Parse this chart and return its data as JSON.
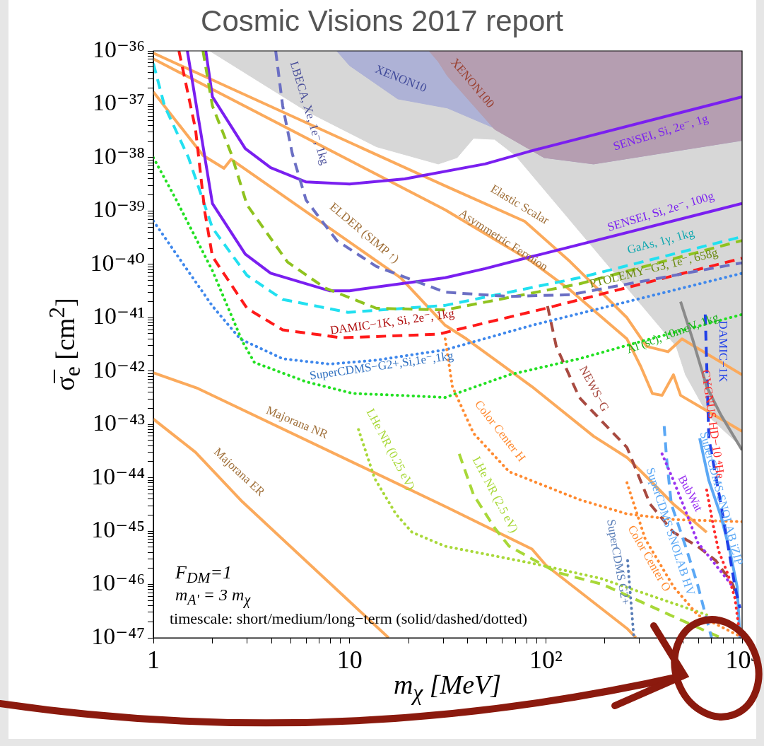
{
  "chart_data": {
    "type": "line",
    "title": "Cosmic Visions 2017 report",
    "xlabel": "m$_{χ}$ [MeV]",
    "ylabel": "σ̅$_{e}$ [cm$^{2}$]",
    "log": "xy",
    "grid": false,
    "legend": false,
    "xlim": [
      1,
      1000
    ],
    "ylim": [
      1e-47,
      1e-36
    ],
    "xticks": [
      {
        "value": 1,
        "label": "1"
      },
      {
        "value": 2,
        "label": null
      },
      {
        "value": 3,
        "label": null
      },
      {
        "value": 4,
        "label": null
      },
      {
        "value": 5,
        "label": null
      },
      {
        "value": 6,
        "label": null
      },
      {
        "value": 7,
        "label": null
      },
      {
        "value": 8,
        "label": null
      },
      {
        "value": 9,
        "label": null
      },
      {
        "value": 10,
        "label": "10"
      },
      {
        "value": 20,
        "label": null
      },
      {
        "value": 30,
        "label": null
      },
      {
        "value": 40,
        "label": null
      },
      {
        "value": 50,
        "label": null
      },
      {
        "value": 60,
        "label": null
      },
      {
        "value": 70,
        "label": null
      },
      {
        "value": 80,
        "label": null
      },
      {
        "value": 90,
        "label": null
      },
      {
        "value": 100,
        "label": "10²"
      },
      {
        "value": 200,
        "label": null
      },
      {
        "value": 300,
        "label": null
      },
      {
        "value": 400,
        "label": null
      },
      {
        "value": 500,
        "label": null
      },
      {
        "value": 600,
        "label": null
      },
      {
        "value": 700,
        "label": null
      },
      {
        "value": 800,
        "label": null
      },
      {
        "value": 900,
        "label": null
      },
      {
        "value": 1000,
        "label": "10³"
      }
    ],
    "yticks": [
      {
        "value": 1e-47,
        "label": "10⁻⁴⁷"
      },
      {
        "value": 2e-47,
        "label": null
      },
      {
        "value": 3e-47,
        "label": null
      },
      {
        "value": 4e-47,
        "label": null
      },
      {
        "value": 5e-47,
        "label": null
      },
      {
        "value": 6e-47,
        "label": null
      },
      {
        "value": 7e-47,
        "label": null
      },
      {
        "value": 8e-47,
        "label": null
      },
      {
        "value": 9e-47,
        "label": null
      },
      {
        "value": 1e-46,
        "label": "10⁻⁴⁶"
      },
      {
        "value": 2e-46,
        "label": null
      },
      {
        "value": 3e-46,
        "label": null
      },
      {
        "value": 4e-46,
        "label": null
      },
      {
        "value": 5e-46,
        "label": null
      },
      {
        "value": 6e-46,
        "label": null
      },
      {
        "value": 7e-46,
        "label": null
      },
      {
        "value": 8e-46,
        "label": null
      },
      {
        "value": 9e-46,
        "label": null
      },
      {
        "value": 1e-45,
        "label": "10⁻⁴⁵"
      },
      {
        "value": 2e-45,
        "label": null
      },
      {
        "value": 3e-45,
        "label": null
      },
      {
        "value": 4e-45,
        "label": null
      },
      {
        "value": 5e-45,
        "label": null
      },
      {
        "value": 6e-45,
        "label": null
      },
      {
        "value": 7e-45,
        "label": null
      },
      {
        "value": 8e-45,
        "label": null
      },
      {
        "value": 9e-45,
        "label": null
      },
      {
        "value": 1e-44,
        "label": "10⁻⁴⁴"
      },
      {
        "value": 2e-44,
        "label": null
      },
      {
        "value": 3e-44,
        "label": null
      },
      {
        "value": 4e-44,
        "label": null
      },
      {
        "value": 5e-44,
        "label": null
      },
      {
        "value": 6e-44,
        "label": null
      },
      {
        "value": 7e-44,
        "label": null
      },
      {
        "value": 8e-44,
        "label": null
      },
      {
        "value": 9e-44,
        "label": null
      },
      {
        "value": 1e-43,
        "label": "10⁻⁴³"
      },
      {
        "value": 2e-43,
        "label": null
      },
      {
        "value": 3e-43,
        "label": null
      },
      {
        "value": 4e-43,
        "label": null
      },
      {
        "value": 5e-43,
        "label": null
      },
      {
        "value": 6e-43,
        "label": null
      },
      {
        "value": 7e-43,
        "label": null
      },
      {
        "value": 8e-43,
        "label": null
      },
      {
        "value": 9e-43,
        "label": null
      },
      {
        "value": 1e-42,
        "label": "10⁻⁴²"
      },
      {
        "value": 2e-42,
        "label": null
      },
      {
        "value": 3e-42,
        "label": null
      },
      {
        "value": 4e-42,
        "label": null
      },
      {
        "value": 5e-42,
        "label": null
      },
      {
        "value": 6e-42,
        "label": null
      },
      {
        "value": 7e-42,
        "label": null
      },
      {
        "value": 8e-42,
        "label": null
      },
      {
        "value": 9e-42,
        "label": null
      },
      {
        "value": 1e-41,
        "label": "10⁻⁴¹"
      },
      {
        "value": 2e-41,
        "label": null
      },
      {
        "value": 3e-41,
        "label": null
      },
      {
        "value": 4e-41,
        "label": null
      },
      {
        "value": 5e-41,
        "label": null
      },
      {
        "value": 6e-41,
        "label": null
      },
      {
        "value": 7e-41,
        "label": null
      },
      {
        "value": 8e-41,
        "label": null
      },
      {
        "value": 9e-41,
        "label": null
      },
      {
        "value": 1e-40,
        "label": "10⁻⁴⁰"
      },
      {
        "value": 2e-40,
        "label": null
      },
      {
        "value": 3e-40,
        "label": null
      },
      {
        "value": 4e-40,
        "label": null
      },
      {
        "value": 5e-40,
        "label": null
      },
      {
        "value": 6e-40,
        "label": null
      },
      {
        "value": 7e-40,
        "label": null
      },
      {
        "value": 8e-40,
        "label": null
      },
      {
        "value": 9e-40,
        "label": null
      },
      {
        "value": 1e-39,
        "label": "10⁻³⁹"
      },
      {
        "value": 2e-39,
        "label": null
      },
      {
        "value": 3e-39,
        "label": null
      },
      {
        "value": 4e-39,
        "label": null
      },
      {
        "value": 5e-39,
        "label": null
      },
      {
        "value": 6e-39,
        "label": null
      },
      {
        "value": 7e-39,
        "label": null
      },
      {
        "value": 8e-39,
        "label": null
      },
      {
        "value": 9e-39,
        "label": null
      },
      {
        "value": 1e-38,
        "label": "10⁻³⁸"
      },
      {
        "value": 2e-38,
        "label": null
      },
      {
        "value": 3e-38,
        "label": null
      },
      {
        "value": 4e-38,
        "label": null
      },
      {
        "value": 5e-38,
        "label": null
      },
      {
        "value": 6e-38,
        "label": null
      },
      {
        "value": 7e-38,
        "label": null
      },
      {
        "value": 8e-38,
        "label": null
      },
      {
        "value": 9e-38,
        "label": null
      },
      {
        "value": 1e-37,
        "label": "10⁻³⁷"
      },
      {
        "value": 2e-37,
        "label": null
      },
      {
        "value": 3e-37,
        "label": null
      },
      {
        "value": 4e-37,
        "label": null
      },
      {
        "value": 5e-37,
        "label": null
      },
      {
        "value": 6e-37,
        "label": null
      },
      {
        "value": 7e-37,
        "label": null
      },
      {
        "value": 8e-37,
        "label": null
      },
      {
        "value": 9e-37,
        "label": null
      },
      {
        "value": 1e-36,
        "label": "10⁻³⁶"
      }
    ],
    "series": [
      {
        "type": "area",
        "color": "#d7d7d7",
        "x": [
          1.94,
          6,
          13.7,
          28.3,
          35.3,
          42.8,
          54.8,
          70,
          462,
          515,
          677,
          1000,
          1000
        ],
        "values": [
          1e-36,
          7.5e-38,
          1.6e-38,
          7.6e-39,
          1e-38,
          2.3e-38,
          2.2e-38,
          1.1e-38,
          2.9e-42,
          8.5e-43,
          1.4e-43,
          3.7e-44,
          1e-36
        ]
      },
      {
        "name": "XENON10",
        "type": "area",
        "color": "#aeb2d6",
        "x": [
          8.6,
          10,
          17.6,
          31.5,
          53.5,
          98,
          175,
          1000,
          1000
        ],
        "values": [
          1e-36,
          5.3e-37,
          1.26e-37,
          8.5e-38,
          3.7e-38,
          1e-38,
          7.6e-39,
          2.1e-38,
          1e-36
        ]
      },
      {
        "name": "XENON100",
        "type": "area",
        "color": "#b59eb1",
        "x": [
          25.4,
          28.3,
          31.5,
          54.8,
          98,
          175,
          1000,
          1000
        ],
        "values": [
          1e-36,
          6.3e-37,
          3.4e-37,
          3.4e-38,
          1e-38,
          7.6e-39,
          2.1e-38,
          1e-36
        ]
      },
      {
        "name": "Elastic Scalar",
        "type": "line",
        "color": "#fbaa5c",
        "line_style": "solid",
        "x": [
          1,
          30.7,
          78,
          133,
          259,
          326,
          419,
          494,
          1000
        ],
        "values": [
          9.1e-37,
          2.95e-39,
          6.4e-40,
          1.12e-40,
          1e-41,
          2.9e-42,
          2.3e-42,
          4e-42,
          8.5e-43
        ]
      },
      {
        "name": "Asymmetric Fermion",
        "type": "line",
        "color": "#fbaa5c",
        "line_style": "solid",
        "x": [
          1,
          30.7,
          85,
          133,
          259,
          305,
          349,
          391,
          447,
          486,
          1000
        ],
        "values": [
          7.1e-37,
          1.05e-39,
          1.12e-40,
          3.3e-41,
          4e-42,
          1.2e-42,
          3.8e-43,
          3.5e-43,
          8.5e-43,
          3.5e-43,
          7.4e-44
        ]
      },
      {
        "name": "ELDER (SIMP ↑)",
        "type": "line",
        "color": "#fbaa5c",
        "line_style": "solid",
        "x": [
          1,
          1.79,
          2.29,
          2.49,
          18.2,
          30.7,
          39.4,
          85,
          175,
          259,
          340,
          447,
          660
        ],
        "values": [
          1.7e-37,
          1.1e-38,
          6.3e-39,
          9.3e-39,
          5.6e-41,
          7.2e-42,
          4e-42,
          5.1e-43,
          6e-44,
          2.4e-44,
          8.9e-45,
          3.2e-45,
          9.5e-46
        ]
      },
      {
        "name": "Majorana NR",
        "type": "line",
        "color": "#fbaa5c",
        "line_style": "solid",
        "x": [
          1,
          1.69,
          30.7,
          85,
          100,
          259,
          288
        ],
        "values": [
          9.3e-43,
          4.7e-43,
          2.9e-45,
          4.6e-46,
          2.3e-46,
          1.5e-47,
          1e-47
        ]
      },
      {
        "name": "Majorana ER",
        "type": "line",
        "color": "#fbaa5c",
        "line_style": "solid",
        "x": [
          1,
          1.64,
          2.84,
          15.8
        ],
        "values": [
          1.26e-43,
          3e-44,
          3.55e-45,
          1e-47
        ]
      },
      {
        "name": "SENSEI, Si, 2e⁻, 1g",
        "type": "line",
        "color": "#7a1ff0",
        "line_style": "solid",
        "x": [
          1.85,
          2,
          2.94,
          3.96,
          6,
          10,
          19.1,
          49,
          85,
          1000
        ],
        "values": [
          1e-36,
          1.38e-37,
          1.48e-38,
          6.5e-39,
          3.5e-39,
          3.2e-39,
          4e-39,
          7.6e-39,
          1.35e-38,
          1.38e-37
        ]
      },
      {
        "name": "SENSEI, Si, 2e⁻, 100g",
        "type": "line",
        "color": "#7a1ff0",
        "line_style": "solid",
        "x": [
          1.49,
          2,
          2.94,
          3.96,
          7.9,
          10,
          30.7,
          49,
          85,
          1000
        ],
        "values": [
          1e-36,
          1.38e-39,
          1.55e-40,
          6.8e-41,
          3.2e-41,
          3.2e-41,
          5.6e-41,
          8.3e-41,
          1.4e-40,
          1.38e-39
        ]
      },
      {
        "name": "GaAs, 1γ, 1kg",
        "type": "line",
        "color": "#22e0f0",
        "line_style": "dashed",
        "x": [
          1,
          1.14,
          1.51,
          2,
          3,
          4.56,
          9.8,
          30.7,
          148,
          1000
        ],
        "values": [
          5.8e-37,
          9.3e-38,
          1e-38,
          4.8e-40,
          6.2e-41,
          2.2e-41,
          1.26e-41,
          1.7e-41,
          5.6e-41,
          3.3e-40
        ]
      },
      {
        "name": "PTOLEMY−G3, 1e⁻, 658g",
        "type": "line",
        "color": "#8fc31f",
        "line_style": "dashed",
        "x": [
          1.79,
          2,
          2.49,
          3,
          4.83,
          7.5,
          13.7,
          30.7,
          148,
          1000
        ],
        "values": [
          1e-36,
          9.3e-38,
          1.2e-38,
          1.3e-39,
          1.1e-40,
          3.6e-41,
          1.5e-41,
          1.4e-41,
          4.3e-41,
          2.8e-40
        ]
      },
      {
        "name": "DAMIC−1K, Si, 2e⁻, 1kg",
        "type": "line",
        "color": "#ff1a1a",
        "line_style": "dashed",
        "x": [
          1.35,
          1.64,
          1.83,
          2,
          3,
          4.56,
          9.1,
          28.3,
          100,
          1000
        ],
        "values": [
          1e-36,
          3.4e-38,
          9.5e-40,
          1.4e-40,
          1.5e-41,
          5.9e-42,
          4.2e-42,
          4.9e-42,
          1.5e-41,
          1.3e-40
        ]
      },
      {
        "name": "LBECA, Xe, 1e⁻, 1kg",
        "type": "line",
        "color": "#6b6fc4",
        "line_style": "dashed",
        "x": [
          4.2,
          4.56,
          5.1,
          6,
          8.6,
          13.7,
          30.7,
          65,
          133,
          1000
        ],
        "values": [
          1e-36,
          9.3e-38,
          1.2e-38,
          1.6e-39,
          2.8e-40,
          9.1e-41,
          3e-41,
          2.5e-41,
          2.7e-41,
          1.07e-40
        ]
      },
      {
        "name": "SuperCDMS−G2+,Si,1e⁻,1kg",
        "type": "line",
        "color": "#3f88ec",
        "line_style": "dotted",
        "x": [
          1,
          1.31,
          2,
          2.77,
          4.56,
          7.9,
          13.7,
          30.7,
          85,
          1000
        ],
        "values": [
          6.5e-40,
          1.55e-40,
          1.65e-41,
          4e-42,
          1.7e-42,
          1.35e-42,
          1.6e-42,
          2.5e-42,
          7.2e-42,
          6.8e-41
        ]
      },
      {
        "name": "Al (sc), 10meV, 1kg",
        "type": "line",
        "color": "#22e022",
        "line_style": "dotted",
        "x": [
          1,
          1.31,
          2,
          2.84,
          3.27,
          6,
          10.4,
          18.2,
          30.7,
          65,
          148,
          340,
          1000
        ],
        "values": [
          1e-38,
          1.6e-39,
          7.6e-41,
          3.6e-42,
          1.45e-42,
          6.3e-43,
          3.8e-43,
          3.5e-43,
          3.2e-43,
          8.5e-43,
          1.7e-42,
          4e-42,
          1.15e-41
        ]
      },
      {
        "name": "LHe NR (0.25 eV)",
        "type": "line",
        "color": "#a8d838",
        "line_style": "dotted",
        "x": [
          11.1,
          13.4,
          17.2,
          20.8,
          30.7,
          85,
          190,
          660
        ],
        "values": [
          8e-44,
          9.8e-45,
          2.1e-45,
          9.5e-46,
          5.2e-46,
          2.5e-46,
          1.3e-46,
          2.7e-47
        ]
      },
      {
        "name": "LHe NR (2.5 eV)",
        "type": "line",
        "color": "#a8d838",
        "line_style": "dashed",
        "x": [
          36.2,
          42.8,
          54.8,
          65,
          113,
          195,
          447,
          780
        ],
        "values": [
          2.8e-44,
          4.8e-45,
          1.15e-45,
          5.2e-46,
          1.7e-46,
          1e-46,
          2.5e-47,
          1e-47
        ]
      },
      {
        "name": "Color Center H",
        "type": "line",
        "color": "#ff8a30",
        "line_style": "dotted",
        "x": [
          30.7,
          33.4,
          42.8,
          65,
          148,
          259,
          447,
          1000
        ],
        "values": [
          4e-42,
          5.1e-43,
          6.8e-44,
          1.3e-44,
          3.9e-45,
          2.1e-45,
          1.65e-45,
          1.5e-45
        ]
      },
      {
        "name": "Color Center O",
        "type": "line",
        "color": "#ff8a30",
        "line_style": "dotted",
        "x": [
          259,
          281,
          321,
          447,
          593,
          975
        ],
        "values": [
          8.1e-45,
          3.2e-45,
          7.1e-46,
          9.1e-47,
          2.7e-47,
          1.07e-47
        ]
      },
      {
        "name": "NEWS−G",
        "type": "line",
        "color": "#a84a40",
        "line_style": "dashed",
        "x": [
          102,
          113,
          148,
          195,
          259,
          340,
          447,
          593,
          735,
          897,
          943
        ],
        "values": [
          1.65e-41,
          2.9e-42,
          3.2e-43,
          1.1e-43,
          3.7e-44,
          3.2e-45,
          9.5e-46,
          5.2e-46,
          2.8e-46,
          1e-46,
          5.5e-47
        ]
      },
      {
        "name": "SuperCDMS G2+",
        "type": "line",
        "color": "#5b7fb8",
        "line_style": "dotted",
        "x": [
          261,
          281
        ],
        "values": [
          2.8e-46,
          1e-47
        ]
      },
      {
        "name": "SuperCDMS SNOLAB HV",
        "type": "line",
        "color": "#5ba8f5",
        "line_style": "dashed",
        "x": [
          401,
          412,
          436,
          515,
          593,
          699
        ],
        "values": [
          9.3e-44,
          2.4e-44,
          3.2e-45,
          5.2e-46,
          1e-46,
          1e-47
        ]
      },
      {
        "name": "SuperCDMS SNOLAB iZIP",
        "type": "line",
        "color": "#5ba8f5",
        "line_style": "solid",
        "x": [
          608,
          677,
          780,
          867,
          943,
          975
        ],
        "values": [
          5.5e-44,
          8.9e-45,
          1.9e-45,
          4.2e-46,
          9.1e-47,
          1e-47
        ]
      },
      {
        "name": "BubWat",
        "type": "line",
        "color": "#9a32f0",
        "line_style": "dotted",
        "x": [
          391,
          447,
          515,
          593,
          735,
          897
        ],
        "values": [
          2.8e-44,
          8.9e-45,
          2.4e-45,
          6.2e-46,
          2.3e-46,
          9.1e-47
        ]
      },
      {
        "name": "CYGNUS HD−10 ⁴He",
        "type": "line",
        "color": "#ff2a2a",
        "line_style": "dotted",
        "x": [
          660,
          717,
          760,
          847,
          920,
          975
        ],
        "values": [
          5.9e-45,
          1.15e-45,
          4.2e-46,
          1.55e-46,
          5.5e-47,
          1.07e-47
        ]
      },
      {
        "name": "DAMIC−1K",
        "type": "line",
        "color": "#2040e8",
        "line_style": "dashed",
        "x": [
          649,
          677,
          780,
          920,
          975
        ],
        "values": [
          1.15e-41,
          5.5e-44,
          3.2e-45,
          9.1e-47,
          3.6e-47
        ]
      },
      {
        "type": "line",
        "color": "#8a8a8a",
        "line_style": "solid",
        "x": [
          486,
          559,
          660,
          780,
          1000
        ],
        "values": [
          2e-41,
          4e-42,
          5.1e-43,
          1.5e-43,
          3.3e-44
        ]
      }
    ],
    "annotations": [
      "F$_{DM}$=1",
      "m$_{A'}$ = 3 m$_{χ}$",
      "timescale: short/medium/long−term (solid/dashed/dotted)"
    ]
  }
}
